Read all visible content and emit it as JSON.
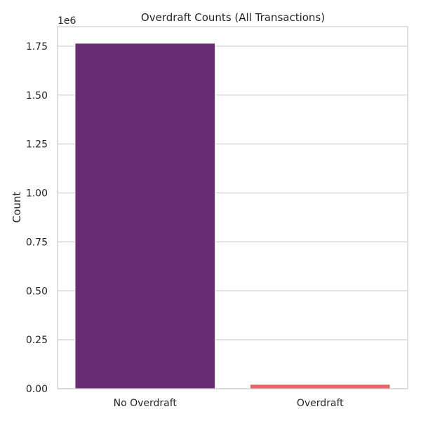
{
  "chart_data": {
    "type": "bar",
    "title": "Overdraft Counts (All Transactions)",
    "xlabel": "",
    "ylabel": "Count",
    "offset_label": "1e6",
    "categories": [
      "No Overdraft",
      "Overdraft"
    ],
    "values": [
      1765000,
      22000
    ],
    "display_scale": 1000000,
    "ylim": [
      0,
      1850000
    ],
    "yticks": [
      0,
      250000,
      500000,
      750000,
      1000000,
      1250000,
      1500000,
      1750000
    ],
    "ytick_labels": [
      "0.00",
      "0.25",
      "0.50",
      "0.75",
      "1.00",
      "1.25",
      "1.50",
      "1.75"
    ],
    "grid": "horizontal",
    "colors": [
      "#692b73",
      "#e86366"
    ]
  },
  "style": {
    "grid_color": "#cccccc",
    "frame_color": "#cccccc",
    "text_color": "#262626",
    "background": "#ffffff"
  }
}
